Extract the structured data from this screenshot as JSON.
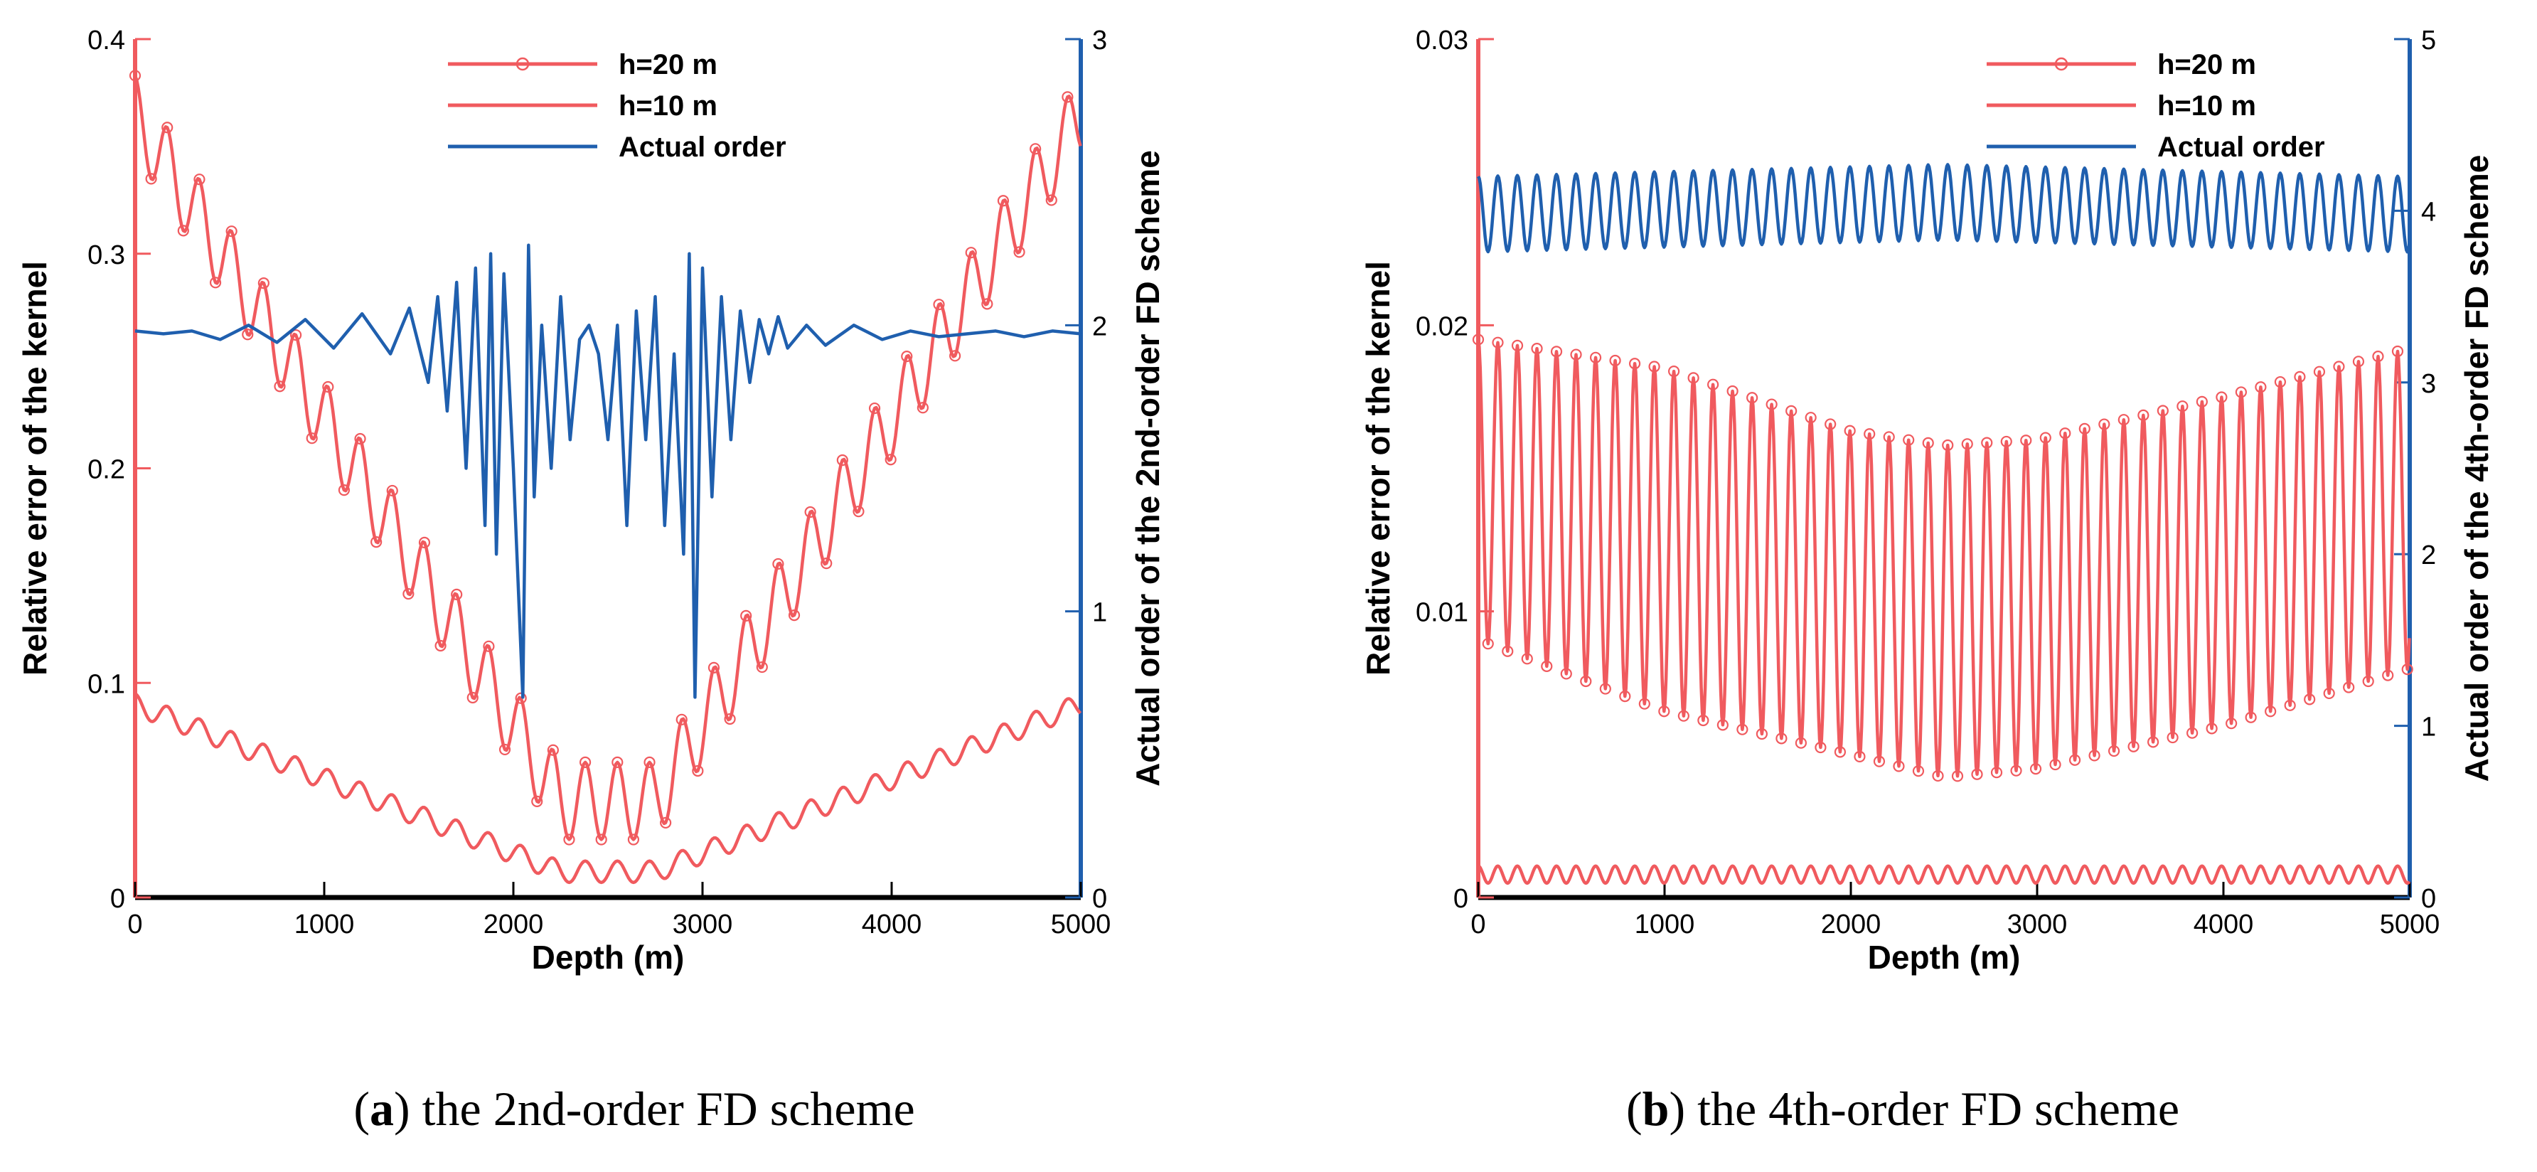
{
  "colors": {
    "red": "#f05a5e",
    "blue": "#1f5fae",
    "black": "#000000"
  },
  "chart_data": [
    {
      "type": "line",
      "panel": "a",
      "caption_letter": "a",
      "caption_text": " the 2nd-order FD scheme",
      "xlabel": "Depth (m)",
      "ylabel_left": "Relative error of the kernel",
      "ylabel_right": "Actual order of the 2nd-order FD scheme",
      "xlim": [
        0,
        5000
      ],
      "ylim_left": [
        0,
        0.4
      ],
      "ylim_right": [
        0,
        3
      ],
      "x_ticks": [
        "0",
        "1000",
        "2000",
        "3000",
        "4000",
        "5000"
      ],
      "y_ticks_left": [
        "0",
        "0.1",
        "0.2",
        "0.3",
        "0.4"
      ],
      "y_ticks_right": [
        "0",
        "1",
        "2",
        "3"
      ],
      "legend": [
        "h=20 m",
        "h=10 m",
        "Actual order"
      ],
      "series": [
        {
          "name": "h=20 m",
          "axis": "left",
          "color": "#f05a5e",
          "markers": true,
          "x": [
            0,
            2250,
            2750,
            5000
          ],
          "y": [
            0.365,
            0.045,
            0.045,
            0.365
          ],
          "oscillation": {
            "amplitude": 0.018,
            "period": 170
          }
        },
        {
          "name": "h=10 m",
          "axis": "left",
          "color": "#f05a5e",
          "markers": false,
          "x": [
            0,
            2250,
            2750,
            5000
          ],
          "y": [
            0.09,
            0.012,
            0.012,
            0.09
          ],
          "oscillation": {
            "amplitude": 0.005,
            "period": 170
          }
        },
        {
          "name": "Actual order",
          "axis": "right",
          "color": "#1f5fae",
          "markers": false,
          "x": [
            0,
            150,
            300,
            450,
            600,
            750,
            900,
            1050,
            1200,
            1350,
            1450,
            1550,
            1600,
            1650,
            1700,
            1750,
            1800,
            1850,
            1880,
            1910,
            1950,
            2000,
            2050,
            2080,
            2110,
            2150,
            2200,
            2250,
            2300,
            2350,
            2400,
            2450,
            2500,
            2550,
            2600,
            2650,
            2700,
            2750,
            2800,
            2850,
            2900,
            2930,
            2960,
            3000,
            3050,
            3100,
            3150,
            3200,
            3250,
            3300,
            3350,
            3400,
            3450,
            3550,
            3650,
            3800,
            3950,
            4100,
            4250,
            4400,
            4550,
            4700,
            4850,
            5000
          ],
          "y": [
            1.98,
            1.97,
            1.98,
            1.95,
            2.0,
            1.94,
            2.02,
            1.92,
            2.04,
            1.9,
            2.06,
            1.8,
            2.1,
            1.7,
            2.15,
            1.5,
            2.2,
            1.3,
            2.25,
            1.2,
            2.18,
            1.5,
            0.7,
            2.28,
            1.4,
            2.0,
            1.5,
            2.1,
            1.6,
            1.95,
            2.0,
            1.9,
            1.6,
            2.0,
            1.3,
            2.05,
            1.6,
            2.1,
            1.3,
            1.9,
            1.2,
            2.25,
            0.7,
            2.2,
            1.4,
            2.1,
            1.6,
            2.05,
            1.8,
            2.02,
            1.9,
            2.03,
            1.92,
            2.0,
            1.93,
            2.0,
            1.95,
            1.98,
            1.96,
            1.97,
            1.98,
            1.96,
            1.98,
            1.97
          ]
        }
      ]
    },
    {
      "type": "line",
      "panel": "b",
      "caption_letter": "b",
      "caption_text": " the 4th-order FD scheme",
      "xlabel": "Depth (m)",
      "ylabel_left": "Relative error of the kernel",
      "ylabel_right": "Actual order of the 4th-order FD scheme",
      "xlim": [
        0,
        5000
      ],
      "ylim_left": [
        0,
        0.03
      ],
      "ylim_right": [
        0,
        5
      ],
      "x_ticks": [
        "0",
        "1000",
        "2000",
        "3000",
        "4000",
        "5000"
      ],
      "y_ticks_left": [
        "0",
        "0.01",
        "0.02",
        "0.03"
      ],
      "y_ticks_right": [
        "0",
        "1",
        "2",
        "3",
        "4",
        "5"
      ],
      "legend": [
        "h=20 m",
        "h=10 m",
        "Actual order"
      ],
      "series": [
        {
          "name": "h=20 m",
          "axis": "left",
          "color": "#f05a5e",
          "markers": true,
          "x": [
            0,
            1000,
            2000,
            2500,
            3000,
            4000,
            5000
          ],
          "y_upper": [
            0.0195,
            0.0185,
            0.0163,
            0.0158,
            0.016,
            0.0175,
            0.0192
          ],
          "y_lower": [
            0.009,
            0.0065,
            0.005,
            0.0042,
            0.0045,
            0.006,
            0.008
          ],
          "oscillation": {
            "period": 105
          }
        },
        {
          "name": "h=10 m",
          "axis": "left",
          "color": "#f05a5e",
          "markers": false,
          "x": [
            0,
            5000
          ],
          "y": [
            0.0008,
            0.0008
          ],
          "oscillation": {
            "amplitude": 0.0003,
            "period": 105
          }
        },
        {
          "name": "Actual order",
          "axis": "right",
          "color": "#1f5fae",
          "markers": false,
          "x": [
            0,
            2500,
            5000
          ],
          "y": [
            3.98,
            4.05,
            3.98
          ],
          "oscillation": {
            "amplitude": 0.22,
            "period": 105
          }
        }
      ]
    }
  ]
}
